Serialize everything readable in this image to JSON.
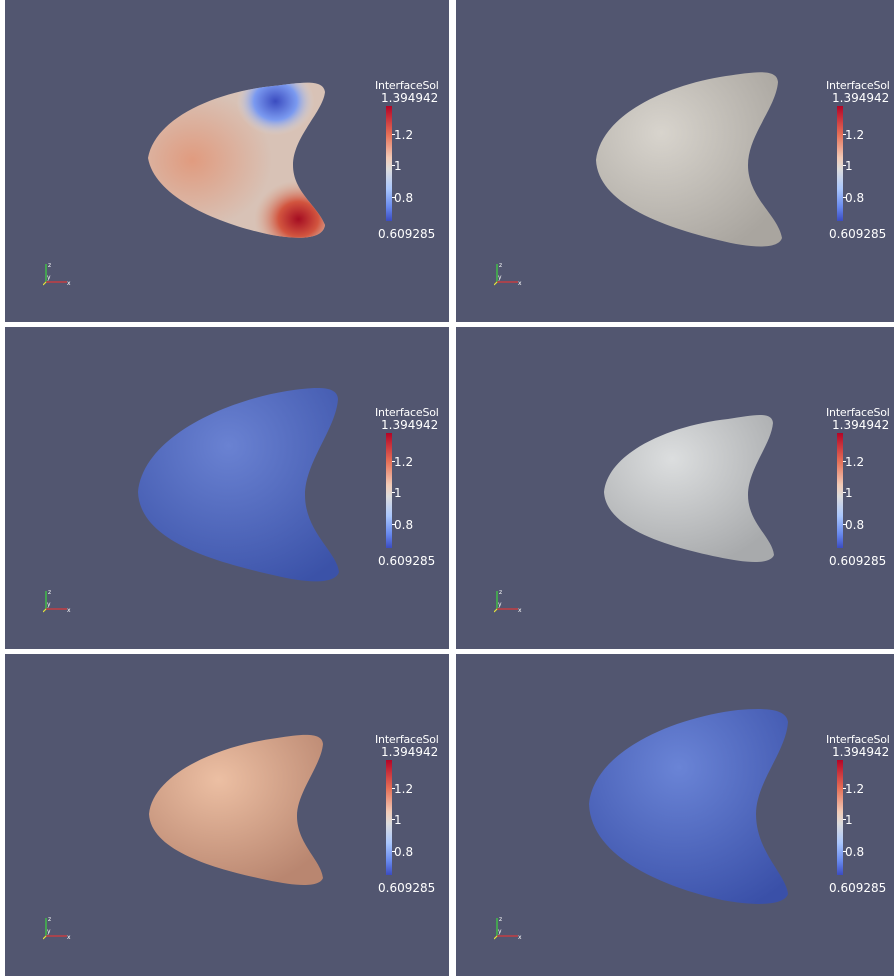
{
  "colorbar": {
    "title": "InterfaceSol",
    "max": "1.394942",
    "tick_1_2": "1.2",
    "tick_1": "1",
    "tick_0_8": "0.8",
    "min": "0.609285",
    "colors": [
      "#b40426",
      "#e57058",
      "#f2cbb7",
      "#dddcdc",
      "#aac7fd",
      "#6788ee",
      "#3b4cc0"
    ]
  },
  "axes": {
    "z_label": "z",
    "y_label": "y",
    "x_label": "x"
  },
  "background_color": "#525670",
  "panels": [
    {
      "id": "top-left",
      "shading": "gradient-blue-red"
    },
    {
      "id": "top-right",
      "shading": "uniform-light-gray",
      "color": "#cfcbc4"
    },
    {
      "id": "middle-left",
      "shading": "uniform-blue",
      "color": "#5068c0"
    },
    {
      "id": "middle-right",
      "shading": "uniform-light-gray",
      "color": "#c9cbcc"
    },
    {
      "id": "bottom-left",
      "shading": "uniform-salmon",
      "color": "#e6b395"
    },
    {
      "id": "bottom-right",
      "shading": "uniform-blue",
      "color": "#4c66c4"
    }
  ]
}
